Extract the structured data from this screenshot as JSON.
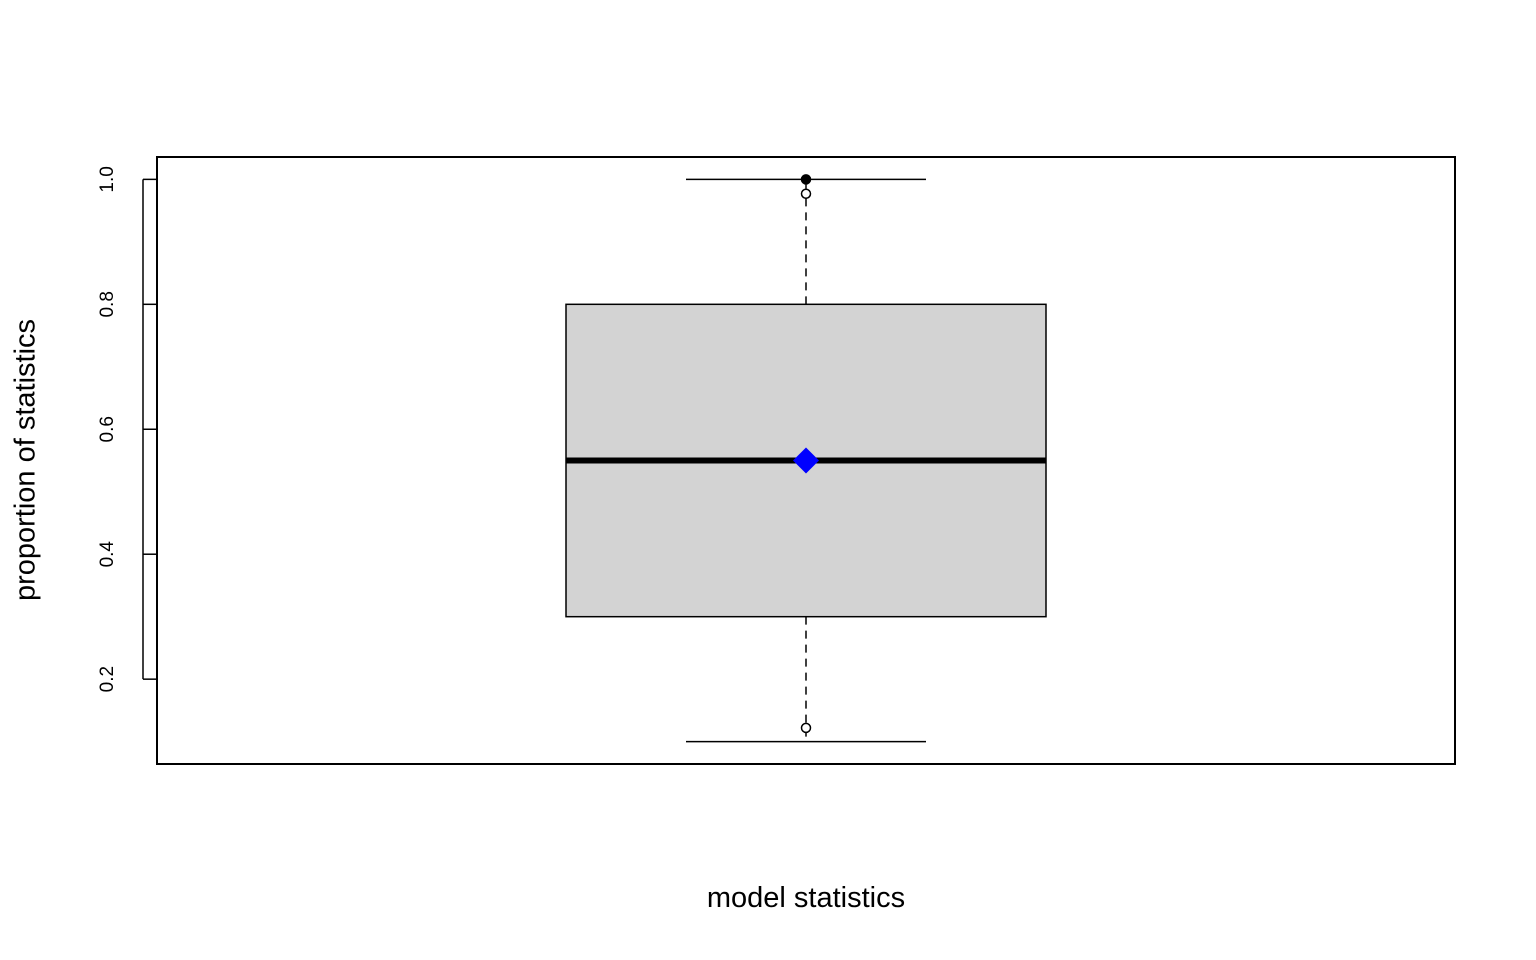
{
  "chart_data": {
    "type": "box",
    "title": "",
    "xlabel": "model statistics",
    "ylabel": "proportion of statistics",
    "ylim": [
      0.0642,
      1.0358
    ],
    "yticks": [
      0.2,
      0.4,
      0.6,
      0.8,
      1.0
    ],
    "ytick_labels": [
      "0.2",
      "0.4",
      "0.6",
      "0.8",
      "1.0"
    ],
    "grid": false,
    "box": {
      "whisker_low": 0.1,
      "q1": 0.3,
      "median": 0.55,
      "q3": 0.8,
      "whisker_high": 1.0,
      "mean": 0.55,
      "fill_color": "#d3d3d3",
      "mean_color": "#0000ff"
    },
    "points": [
      {
        "value": 1.0,
        "filled": true
      },
      {
        "value": 0.977,
        "filled": false
      },
      {
        "value": 0.122,
        "filled": false
      }
    ]
  }
}
